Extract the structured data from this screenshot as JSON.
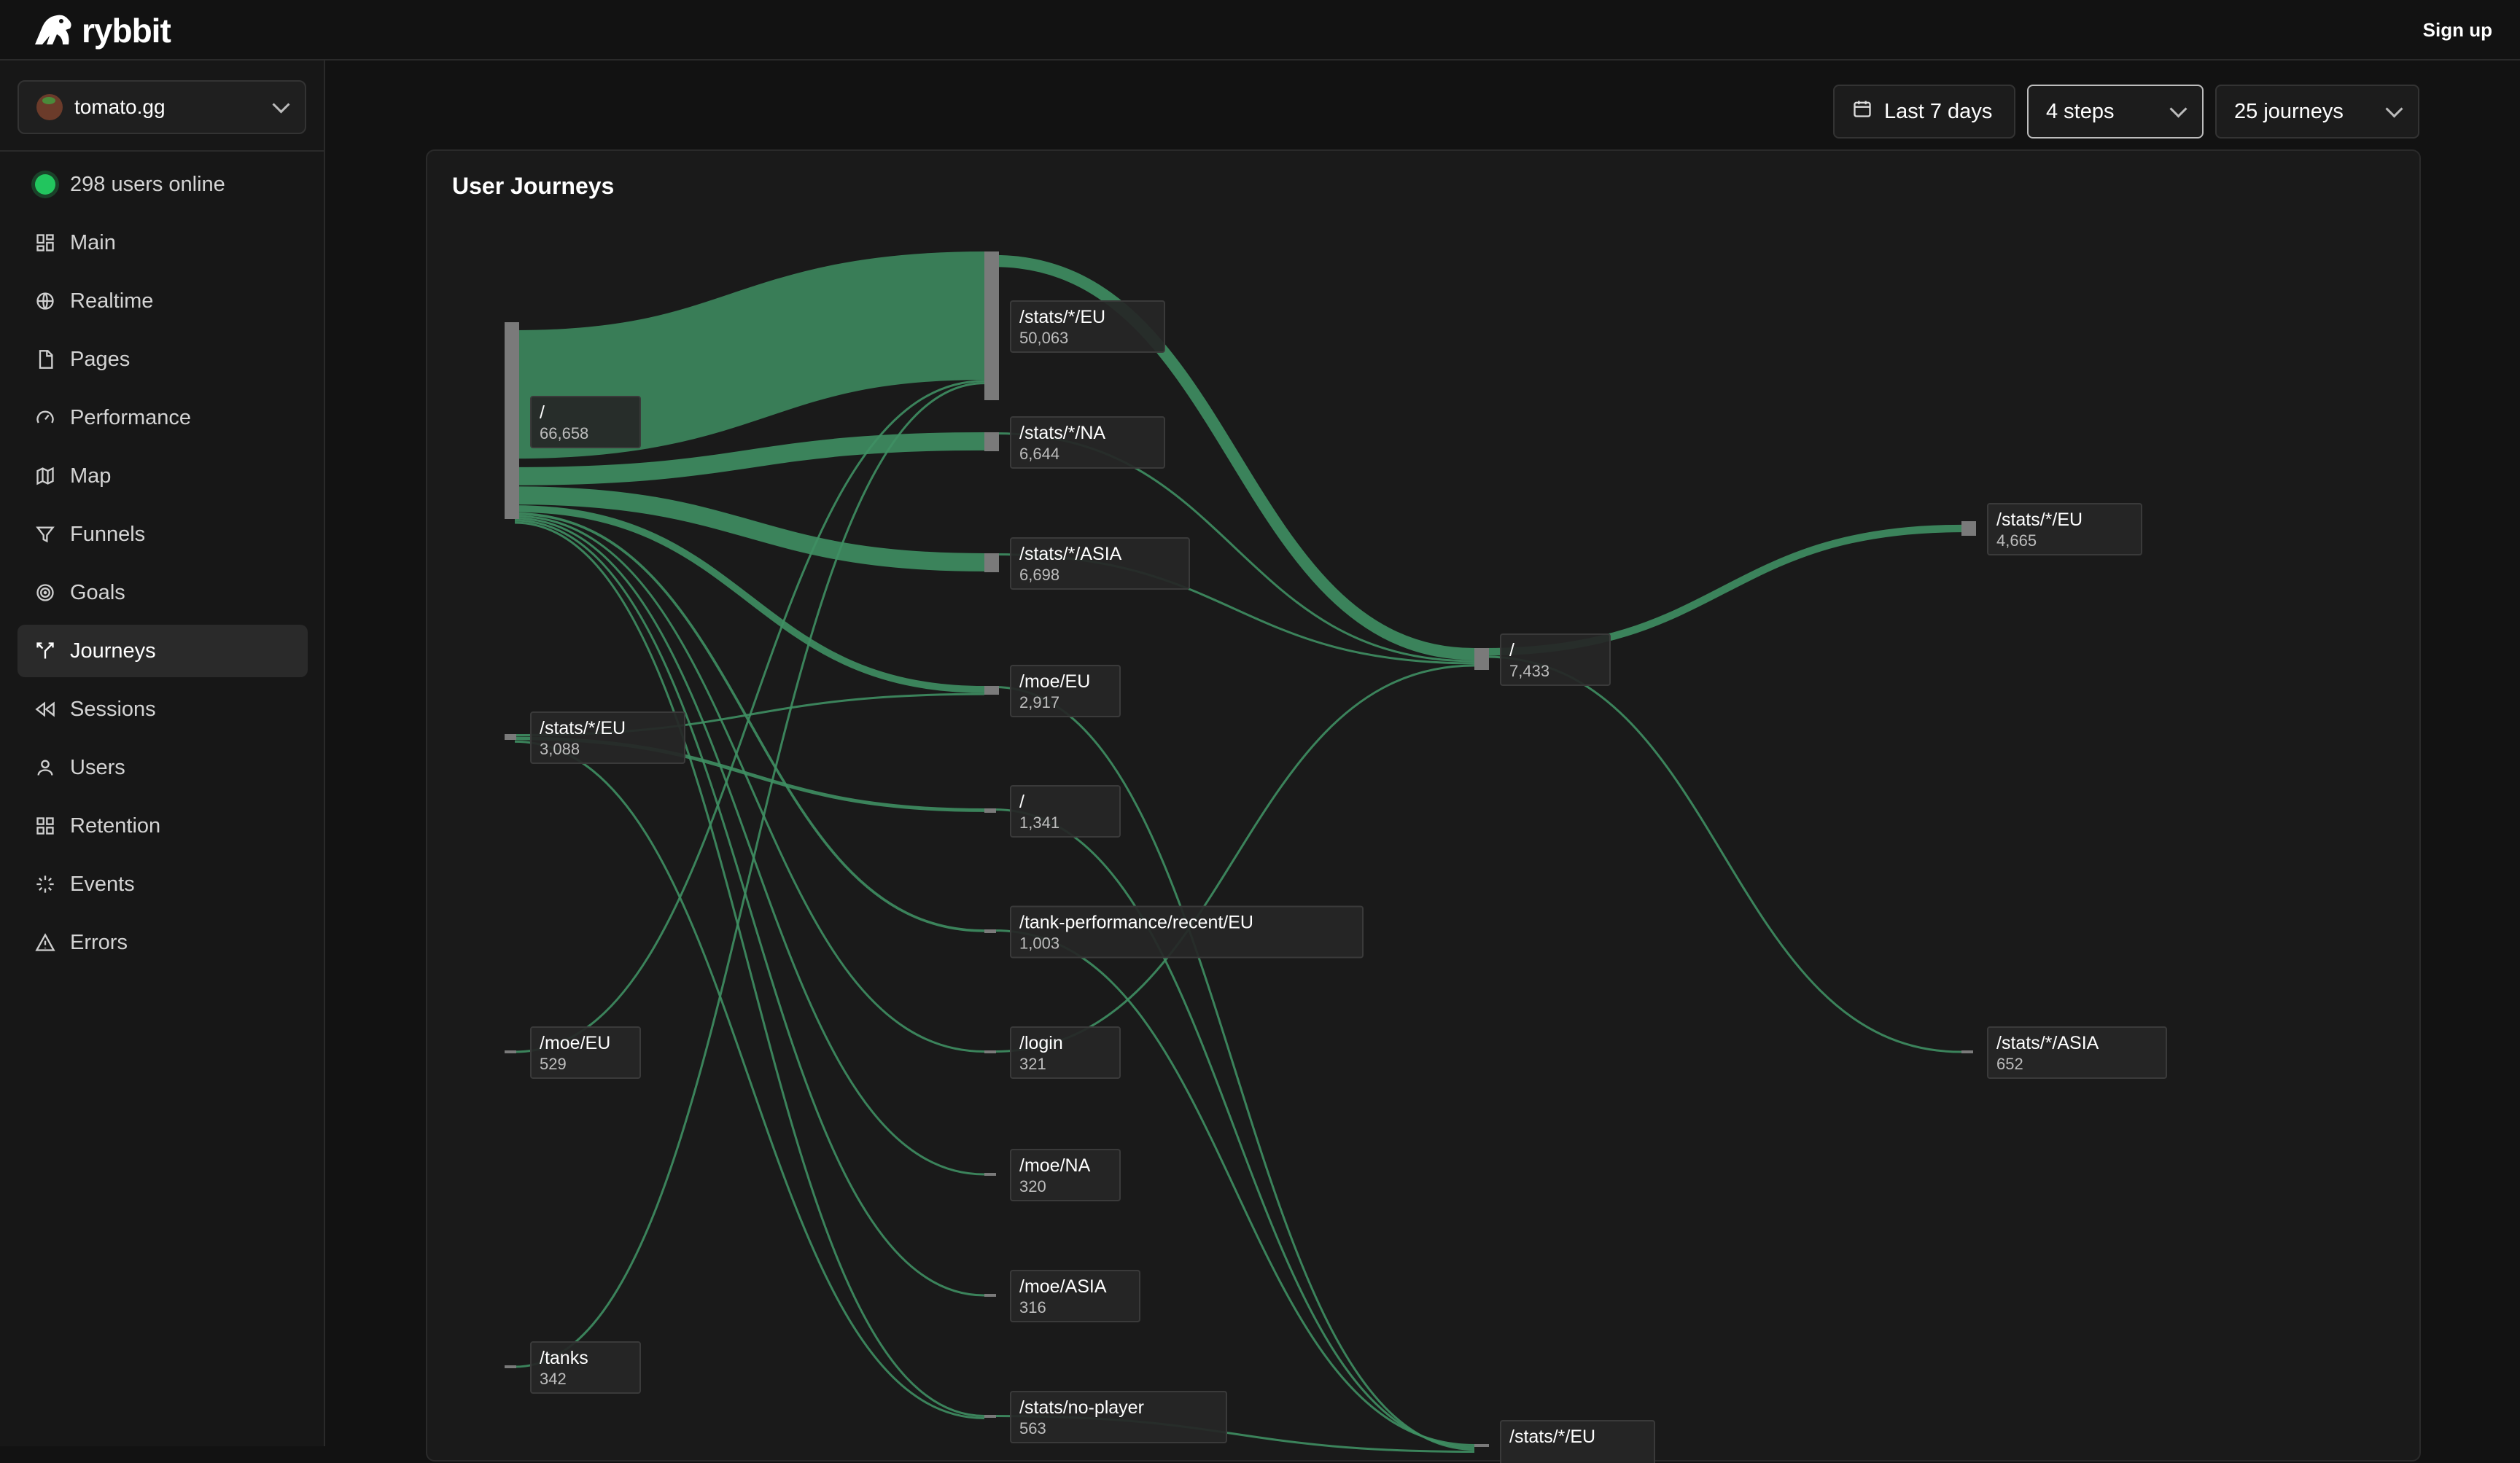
{
  "app": {
    "name": "rybbit",
    "signup_label": "Sign up"
  },
  "sidebar": {
    "site": "tomato.gg",
    "online": "298 users online",
    "items": [
      {
        "label": "Main",
        "icon": "grid-icon"
      },
      {
        "label": "Realtime",
        "icon": "globe-icon"
      },
      {
        "label": "Pages",
        "icon": "file-icon"
      },
      {
        "label": "Performance",
        "icon": "gauge-icon"
      },
      {
        "label": "Map",
        "icon": "map-icon"
      },
      {
        "label": "Funnels",
        "icon": "funnel-icon"
      },
      {
        "label": "Goals",
        "icon": "target-icon"
      },
      {
        "label": "Journeys",
        "icon": "split-icon",
        "active": true
      },
      {
        "label": "Sessions",
        "icon": "rewind-icon"
      },
      {
        "label": "Users",
        "icon": "user-icon"
      },
      {
        "label": "Retention",
        "icon": "grid-icon"
      },
      {
        "label": "Events",
        "icon": "sparkle-icon"
      },
      {
        "label": "Errors",
        "icon": "warning-icon"
      }
    ]
  },
  "controls": {
    "date_range": "Last 7 days",
    "steps": "4 steps",
    "journeys": "25 journeys"
  },
  "panel": {
    "title": "User Journeys"
  },
  "chart_data": {
    "type": "sankey",
    "accent_color": "#3f8f63",
    "nodes": [
      {
        "id": "s0_root",
        "step": 1,
        "path": "/",
        "count": "66,658"
      },
      {
        "id": "s0_eu",
        "step": 1,
        "path": "/stats/*/EU",
        "count": "3,088"
      },
      {
        "id": "s0_moeeu",
        "step": 1,
        "path": "/moe/EU",
        "count": "529"
      },
      {
        "id": "s0_tanks",
        "step": 1,
        "path": "/tanks",
        "count": "342"
      },
      {
        "id": "s1_eu",
        "step": 2,
        "path": "/stats/*/EU",
        "count": "50,063"
      },
      {
        "id": "s1_na",
        "step": 2,
        "path": "/stats/*/NA",
        "count": "6,644"
      },
      {
        "id": "s1_asia",
        "step": 2,
        "path": "/stats/*/ASIA",
        "count": "6,698"
      },
      {
        "id": "s1_moeeu",
        "step": 2,
        "path": "/moe/EU",
        "count": "2,917"
      },
      {
        "id": "s1_root",
        "step": 2,
        "path": "/",
        "count": "1,341"
      },
      {
        "id": "s1_tank",
        "step": 2,
        "path": "/tank-performance/recent/EU",
        "count": "1,003"
      },
      {
        "id": "s1_login",
        "step": 2,
        "path": "/login",
        "count": "321"
      },
      {
        "id": "s1_moena",
        "step": 2,
        "path": "/moe/NA",
        "count": "320"
      },
      {
        "id": "s1_moeasia",
        "step": 2,
        "path": "/moe/ASIA",
        "count": "316"
      },
      {
        "id": "s1_noplayer",
        "step": 2,
        "path": "/stats/no-player",
        "count": "563"
      },
      {
        "id": "s2_root",
        "step": 3,
        "path": "/",
        "count": "7,433"
      },
      {
        "id": "s2_eu",
        "step": 3,
        "path": "/stats/*/EU",
        "count": ""
      },
      {
        "id": "s3_eu",
        "step": 4,
        "path": "/stats/*/EU",
        "count": "4,665"
      },
      {
        "id": "s3_asia",
        "step": 4,
        "path": "/stats/*/ASIA",
        "count": "652"
      }
    ],
    "links": [
      {
        "source": "s0_root",
        "target": "s1_eu",
        "value": 50063
      },
      {
        "source": "s0_root",
        "target": "s1_na",
        "value": 6644
      },
      {
        "source": "s0_root",
        "target": "s1_asia",
        "value": 6698
      },
      {
        "source": "s0_root",
        "target": "s1_moeeu",
        "value": 2500
      },
      {
        "source": "s0_root",
        "target": "s1_tank",
        "value": 900
      },
      {
        "source": "s0_root",
        "target": "s1_login",
        "value": 300
      },
      {
        "source": "s0_root",
        "target": "s1_moena",
        "value": 300
      },
      {
        "source": "s0_root",
        "target": "s1_moeasia",
        "value": 300
      },
      {
        "source": "s0_root",
        "target": "s1_noplayer",
        "value": 500
      },
      {
        "source": "s0_eu",
        "target": "s1_moeeu",
        "value": 400
      },
      {
        "source": "s0_eu",
        "target": "s1_root",
        "value": 1341
      },
      {
        "source": "s0_eu",
        "target": "s1_noplayer",
        "value": 100
      },
      {
        "source": "s0_moeeu",
        "target": "s1_eu",
        "value": 300
      },
      {
        "source": "s0_tanks",
        "target": "s1_eu",
        "value": 200
      },
      {
        "source": "s1_eu",
        "target": "s2_root",
        "value": 7433
      },
      {
        "source": "s1_na",
        "target": "s2_root",
        "value": 300
      },
      {
        "source": "s1_asia",
        "target": "s2_root",
        "value": 300
      },
      {
        "source": "s1_login",
        "target": "s2_root",
        "value": 200
      },
      {
        "source": "s1_tank",
        "target": "s2_eu",
        "value": 300
      },
      {
        "source": "s1_root",
        "target": "s2_eu",
        "value": 300
      },
      {
        "source": "s1_moeeu",
        "target": "s2_eu",
        "value": 200
      },
      {
        "source": "s1_noplayer",
        "target": "s2_eu",
        "value": 300
      },
      {
        "source": "s2_root",
        "target": "s3_eu",
        "value": 4665
      },
      {
        "source": "s2_root",
        "target": "s3_asia",
        "value": 652
      }
    ]
  }
}
